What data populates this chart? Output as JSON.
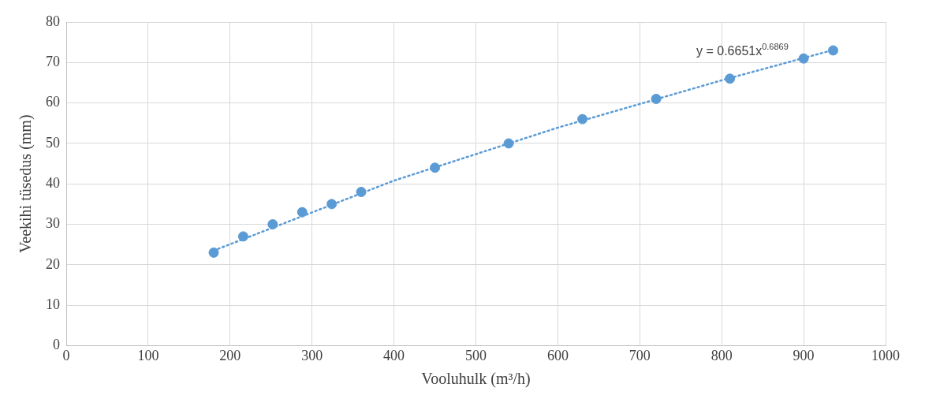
{
  "chart_data": {
    "type": "scatter",
    "xlabel": "Vooluhulk (m³/h)",
    "ylabel": "Veekihi tüsedus (mm)",
    "xlim": [
      0,
      1000
    ],
    "xticks": [
      0,
      100,
      200,
      300,
      400,
      500,
      600,
      700,
      800,
      900,
      1000
    ],
    "ylim": [
      0,
      80
    ],
    "yticks": [
      0,
      10,
      20,
      30,
      40,
      50,
      60,
      70,
      80
    ],
    "grid": true,
    "legend": false,
    "series": [
      {
        "marker": "circle",
        "color": "#5b9bd5",
        "x": [
          180,
          216,
          252,
          288,
          324,
          360,
          450,
          540,
          630,
          720,
          810,
          900,
          936
        ],
        "values": [
          23,
          27,
          30,
          33,
          35,
          38,
          44,
          50,
          56,
          61,
          66,
          71,
          73
        ]
      },
      {
        "type": "line",
        "marker": "none",
        "color": "#5b9bd5",
        "line_style": "dotted",
        "x": [
          180,
          400,
          600,
          800,
          936
        ],
        "values": [
          23.5,
          40.8,
          53.9,
          65.6,
          73.1
        ]
      }
    ],
    "annotations": [
      "y = 0.6651x$^{0.6869}$"
    ]
  }
}
